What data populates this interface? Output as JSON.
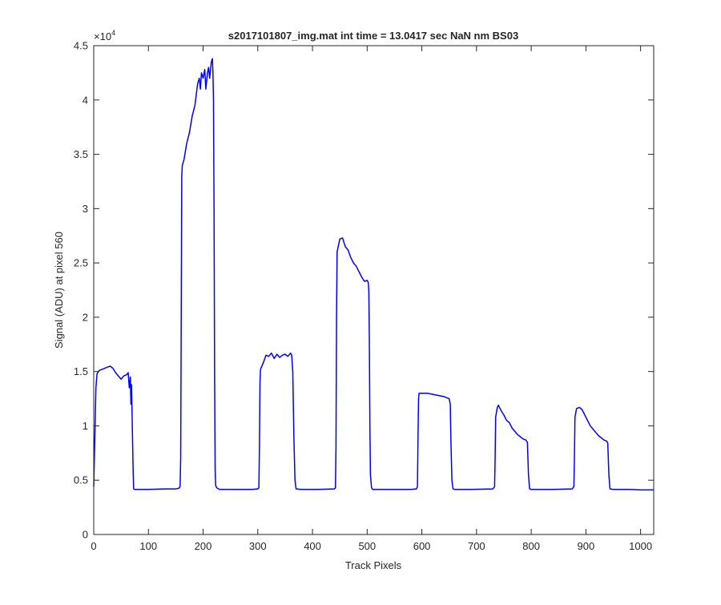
{
  "chart_data": {
    "type": "line",
    "title": "s2017101807_img.mat int time = 13.0417 sec  NaN nm BS03",
    "xlabel": "Track Pixels",
    "ylabel": "Signal (ADU) at pixel 560",
    "y_exponent_label": "×10",
    "y_exponent_power": "4",
    "xlim": [
      0,
      1024
    ],
    "ylim": [
      0,
      45000
    ],
    "x_ticks": [
      0,
      100,
      200,
      300,
      400,
      500,
      600,
      700,
      800,
      900,
      1000
    ],
    "x_tick_labels": [
      "0",
      "100",
      "200",
      "300",
      "400",
      "500",
      "600",
      "700",
      "800",
      "900",
      "1000"
    ],
    "y_ticks": [
      0,
      5000,
      10000,
      15000,
      20000,
      25000,
      30000,
      35000,
      40000,
      45000
    ],
    "y_tick_labels": [
      "0",
      "0.5",
      "1",
      "1.5",
      "2",
      "2.5",
      "3",
      "3.5",
      "4",
      "4.5"
    ],
    "grid": false,
    "line_color": "#0000ff",
    "axes_color": "#262626",
    "series": [
      {
        "points": [
          [
            0,
            4400
          ],
          [
            2,
            9000
          ],
          [
            4,
            13500
          ],
          [
            6,
            14800
          ],
          [
            10,
            15100
          ],
          [
            15,
            15200
          ],
          [
            20,
            15300
          ],
          [
            25,
            15400
          ],
          [
            30,
            15500
          ],
          [
            35,
            15300
          ],
          [
            40,
            14900
          ],
          [
            45,
            14600
          ],
          [
            50,
            14300
          ],
          [
            55,
            14600
          ],
          [
            60,
            14700
          ],
          [
            63,
            14900
          ],
          [
            65,
            13500
          ],
          [
            67,
            14500
          ],
          [
            68,
            12000
          ],
          [
            69,
            13800
          ],
          [
            70,
            11500
          ],
          [
            72,
            6000
          ],
          [
            73,
            4200
          ],
          [
            75,
            4150
          ],
          [
            100,
            4150
          ],
          [
            130,
            4200
          ],
          [
            150,
            4200
          ],
          [
            155,
            4250
          ],
          [
            157,
            4300
          ],
          [
            158,
            4500
          ],
          [
            159,
            7000
          ],
          [
            160,
            20000
          ],
          [
            161,
            33000
          ],
          [
            162,
            34000
          ],
          [
            165,
            34500
          ],
          [
            170,
            36000
          ],
          [
            175,
            37000
          ],
          [
            180,
            38500
          ],
          [
            185,
            39500
          ],
          [
            190,
            41500
          ],
          [
            193,
            42000
          ],
          [
            195,
            41000
          ],
          [
            197,
            42500
          ],
          [
            200,
            42000
          ],
          [
            203,
            42800
          ],
          [
            205,
            41000
          ],
          [
            208,
            42500
          ],
          [
            210,
            43000
          ],
          [
            212,
            42000
          ],
          [
            215,
            43500
          ],
          [
            217,
            43800
          ],
          [
            218,
            42500
          ],
          [
            219,
            40000
          ],
          [
            220,
            30000
          ],
          [
            221,
            15000
          ],
          [
            222,
            6000
          ],
          [
            223,
            4500
          ],
          [
            225,
            4300
          ],
          [
            230,
            4150
          ],
          [
            260,
            4150
          ],
          [
            290,
            4150
          ],
          [
            300,
            4200
          ],
          [
            302,
            4300
          ],
          [
            303,
            8000
          ],
          [
            304,
            14000
          ],
          [
            305,
            15200
          ],
          [
            310,
            15800
          ],
          [
            315,
            16500
          ],
          [
            320,
            16400
          ],
          [
            325,
            16700
          ],
          [
            330,
            16200
          ],
          [
            335,
            16600
          ],
          [
            340,
            16300
          ],
          [
            345,
            16500
          ],
          [
            350,
            16600
          ],
          [
            355,
            16400
          ],
          [
            360,
            16700
          ],
          [
            362,
            16500
          ],
          [
            364,
            15000
          ],
          [
            366,
            9000
          ],
          [
            368,
            5000
          ],
          [
            370,
            4200
          ],
          [
            380,
            4150
          ],
          [
            410,
            4150
          ],
          [
            440,
            4200
          ],
          [
            442,
            4300
          ],
          [
            443,
            8000
          ],
          [
            444,
            20000
          ],
          [
            445,
            26000
          ],
          [
            450,
            27200
          ],
          [
            455,
            27300
          ],
          [
            460,
            26500
          ],
          [
            465,
            26200
          ],
          [
            470,
            25500
          ],
          [
            475,
            25000
          ],
          [
            480,
            24700
          ],
          [
            485,
            24200
          ],
          [
            490,
            23700
          ],
          [
            495,
            23300
          ],
          [
            500,
            23400
          ],
          [
            502,
            23200
          ],
          [
            503,
            22500
          ],
          [
            504,
            18000
          ],
          [
            505,
            10000
          ],
          [
            506,
            5500
          ],
          [
            508,
            4300
          ],
          [
            510,
            4150
          ],
          [
            540,
            4150
          ],
          [
            580,
            4150
          ],
          [
            590,
            4200
          ],
          [
            592,
            4400
          ],
          [
            593,
            9000
          ],
          [
            594,
            12500
          ],
          [
            595,
            13000
          ],
          [
            600,
            13000
          ],
          [
            610,
            13000
          ],
          [
            620,
            12900
          ],
          [
            630,
            12800
          ],
          [
            640,
            12700
          ],
          [
            645,
            12600
          ],
          [
            650,
            12500
          ],
          [
            652,
            12000
          ],
          [
            653,
            9000
          ],
          [
            655,
            5000
          ],
          [
            657,
            4200
          ],
          [
            660,
            4150
          ],
          [
            690,
            4150
          ],
          [
            730,
            4200
          ],
          [
            733,
            4400
          ],
          [
            734,
            7000
          ],
          [
            735,
            10800
          ],
          [
            738,
            11700
          ],
          [
            740,
            11900
          ],
          [
            745,
            11400
          ],
          [
            750,
            11000
          ],
          [
            755,
            10500
          ],
          [
            760,
            10300
          ],
          [
            765,
            9800
          ],
          [
            770,
            9500
          ],
          [
            775,
            9200
          ],
          [
            780,
            9000
          ],
          [
            785,
            8800
          ],
          [
            790,
            8700
          ],
          [
            793,
            8500
          ],
          [
            795,
            5500
          ],
          [
            797,
            4200
          ],
          [
            800,
            4150
          ],
          [
            840,
            4150
          ],
          [
            875,
            4200
          ],
          [
            878,
            4400
          ],
          [
            879,
            7000
          ],
          [
            880,
            10800
          ],
          [
            883,
            11600
          ],
          [
            888,
            11700
          ],
          [
            893,
            11500
          ],
          [
            898,
            11000
          ],
          [
            903,
            10500
          ],
          [
            908,
            10000
          ],
          [
            913,
            9700
          ],
          [
            918,
            9400
          ],
          [
            923,
            9100
          ],
          [
            928,
            8900
          ],
          [
            933,
            8700
          ],
          [
            938,
            8600
          ],
          [
            940,
            8400
          ],
          [
            942,
            5500
          ],
          [
            944,
            4200
          ],
          [
            950,
            4150
          ],
          [
            980,
            4150
          ],
          [
            1000,
            4100
          ],
          [
            1024,
            4100
          ]
        ]
      }
    ]
  }
}
